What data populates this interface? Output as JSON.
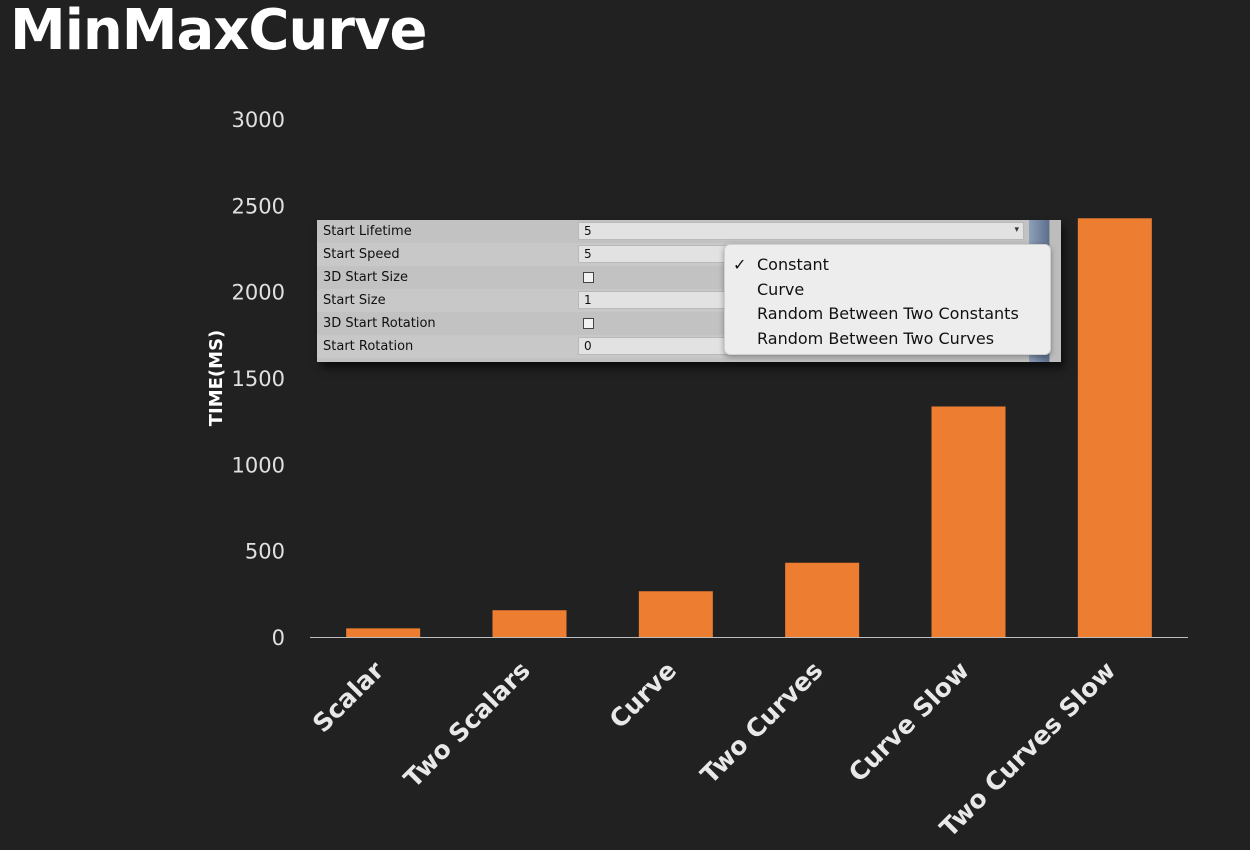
{
  "title": "MinMaxCurve",
  "chart_data": {
    "type": "bar",
    "categories": [
      "Scalar",
      "Two Scalars",
      "Curve",
      "Two Curves",
      "Curve Slow",
      "Two Curves Slow"
    ],
    "values": [
      50,
      155,
      265,
      430,
      1335,
      2425
    ],
    "ylabel": "TIME(MS)",
    "xlabel": "",
    "ylim": [
      0,
      3000
    ],
    "yticks": [
      0,
      500,
      1000,
      1500,
      2000,
      2500,
      3000
    ],
    "bar_color": "#ed7d31",
    "grid": false
  },
  "inspector": {
    "rows": [
      {
        "label": "Start Lifetime",
        "value": "5",
        "type": "dropdown"
      },
      {
        "label": "Start Speed",
        "value": "5",
        "type": "field"
      },
      {
        "label": "3D Start Size",
        "value": "",
        "type": "checkbox"
      },
      {
        "label": "Start Size",
        "value": "1",
        "type": "field"
      },
      {
        "label": "3D Start Rotation",
        "value": "",
        "type": "checkbox"
      },
      {
        "label": "Start Rotation",
        "value": "0",
        "type": "field"
      }
    ],
    "dropdown_arrow": "▾"
  },
  "popup": {
    "check_mark": "✓",
    "options": [
      "Constant",
      "Curve",
      "Random Between Two Constants",
      "Random Between Two Curves"
    ],
    "selected": "Constant"
  }
}
